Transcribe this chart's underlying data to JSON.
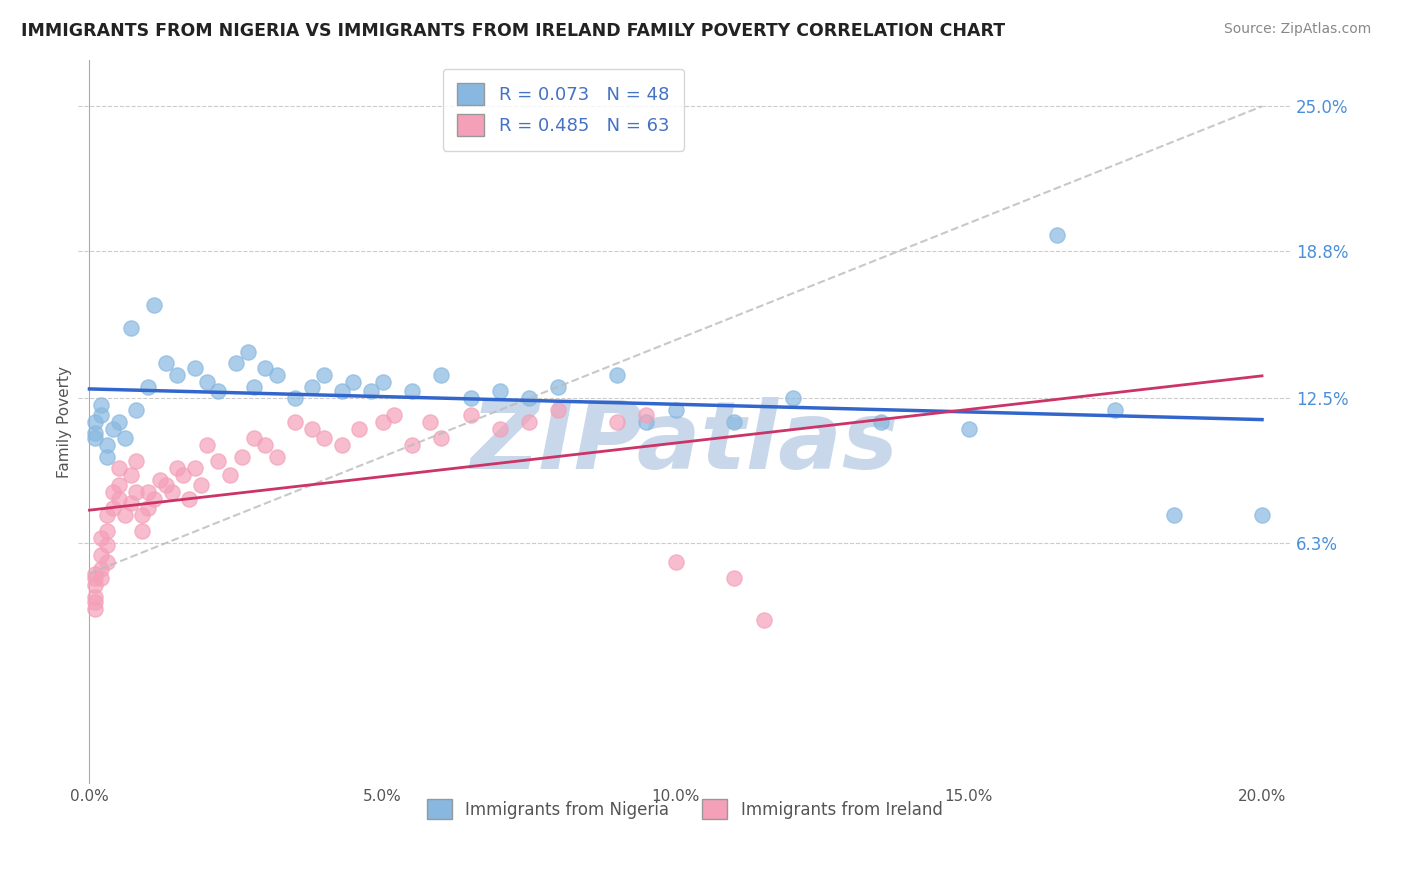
{
  "title": "IMMIGRANTS FROM NIGERIA VS IMMIGRANTS FROM IRELAND FAMILY POVERTY CORRELATION CHART",
  "source": "Source: ZipAtlas.com",
  "ylabel": "Family Poverty",
  "xlim": [
    -0.002,
    0.205
  ],
  "ylim": [
    -0.04,
    0.27
  ],
  "yticks": [
    0.063,
    0.125,
    0.188,
    0.25
  ],
  "ytick_labels": [
    "6.3%",
    "12.5%",
    "18.8%",
    "25.0%"
  ],
  "xticks": [
    0.0,
    0.05,
    0.1,
    0.15,
    0.2
  ],
  "xtick_labels": [
    "0.0%",
    "5.0%",
    "10.0%",
    "15.0%",
    "20.0%"
  ],
  "nigeria_color": "#88b8e0",
  "ireland_color": "#f4a0b8",
  "nigeria_label": "Immigrants from Nigeria",
  "ireland_label": "Immigrants from Ireland",
  "nigeria_R": 0.073,
  "nigeria_N": 48,
  "ireland_R": 0.485,
  "ireland_N": 63,
  "nigeria_line_color": "#3366cc",
  "ireland_line_color": "#cc3366",
  "dashed_line_color": "#cccccc",
  "grid_color": "#cccccc",
  "watermark": "ZIPatlas",
  "watermark_color": "#c8d8ea",
  "nigeria_x": [
    0.001,
    0.001,
    0.001,
    0.002,
    0.002,
    0.003,
    0.003,
    0.004,
    0.005,
    0.006,
    0.007,
    0.008,
    0.01,
    0.011,
    0.013,
    0.015,
    0.018,
    0.02,
    0.022,
    0.025,
    0.027,
    0.028,
    0.03,
    0.032,
    0.035,
    0.038,
    0.04,
    0.043,
    0.045,
    0.048,
    0.05,
    0.055,
    0.06,
    0.065,
    0.07,
    0.075,
    0.08,
    0.09,
    0.095,
    0.1,
    0.11,
    0.12,
    0.135,
    0.15,
    0.165,
    0.175,
    0.185,
    0.2
  ],
  "nigeria_y": [
    0.115,
    0.11,
    0.108,
    0.122,
    0.118,
    0.1,
    0.105,
    0.112,
    0.115,
    0.108,
    0.155,
    0.12,
    0.13,
    0.165,
    0.14,
    0.135,
    0.138,
    0.132,
    0.128,
    0.14,
    0.145,
    0.13,
    0.138,
    0.135,
    0.125,
    0.13,
    0.135,
    0.128,
    0.132,
    0.128,
    0.132,
    0.128,
    0.135,
    0.125,
    0.128,
    0.125,
    0.13,
    0.135,
    0.115,
    0.12,
    0.115,
    0.125,
    0.115,
    0.112,
    0.195,
    0.12,
    0.075,
    0.075
  ],
  "ireland_x": [
    0.001,
    0.001,
    0.001,
    0.001,
    0.001,
    0.001,
    0.002,
    0.002,
    0.002,
    0.002,
    0.003,
    0.003,
    0.003,
    0.003,
    0.004,
    0.004,
    0.005,
    0.005,
    0.005,
    0.006,
    0.007,
    0.007,
    0.008,
    0.008,
    0.009,
    0.009,
    0.01,
    0.01,
    0.011,
    0.012,
    0.013,
    0.014,
    0.015,
    0.016,
    0.017,
    0.018,
    0.019,
    0.02,
    0.022,
    0.024,
    0.026,
    0.028,
    0.03,
    0.032,
    0.035,
    0.038,
    0.04,
    0.043,
    0.046,
    0.05,
    0.052,
    0.055,
    0.058,
    0.06,
    0.065,
    0.07,
    0.075,
    0.08,
    0.09,
    0.095,
    0.1,
    0.11,
    0.115
  ],
  "ireland_y": [
    0.05,
    0.048,
    0.045,
    0.04,
    0.038,
    0.035,
    0.065,
    0.058,
    0.052,
    0.048,
    0.075,
    0.068,
    0.062,
    0.055,
    0.085,
    0.078,
    0.095,
    0.088,
    0.082,
    0.075,
    0.092,
    0.08,
    0.098,
    0.085,
    0.075,
    0.068,
    0.085,
    0.078,
    0.082,
    0.09,
    0.088,
    0.085,
    0.095,
    0.092,
    0.082,
    0.095,
    0.088,
    0.105,
    0.098,
    0.092,
    0.1,
    0.108,
    0.105,
    0.1,
    0.115,
    0.112,
    0.108,
    0.105,
    0.112,
    0.115,
    0.118,
    0.105,
    0.115,
    0.108,
    0.118,
    0.112,
    0.115,
    0.12,
    0.115,
    0.118,
    0.055,
    0.048,
    0.03
  ]
}
